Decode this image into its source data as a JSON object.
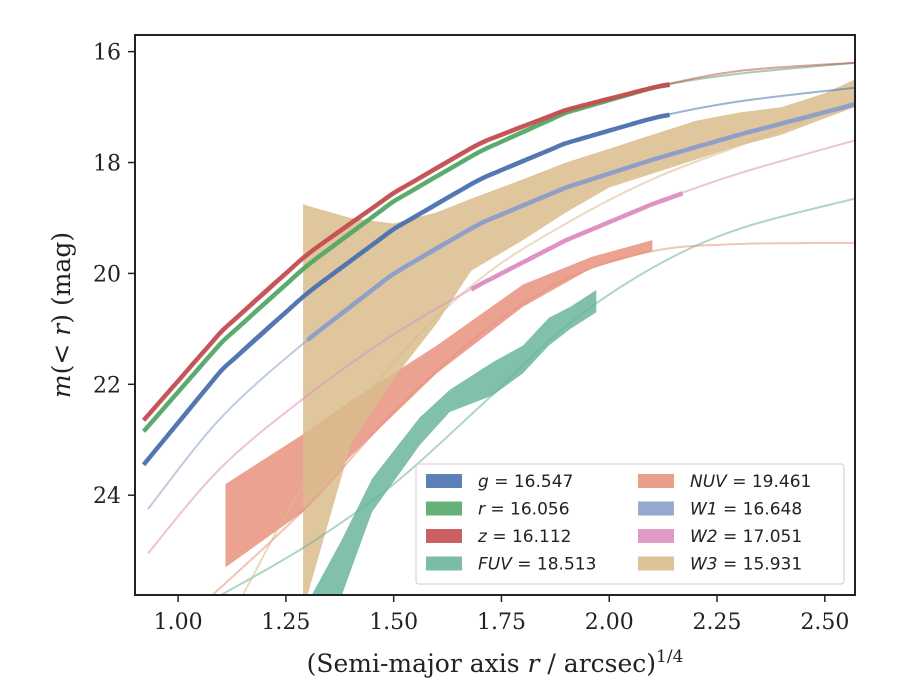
{
  "chart_data": {
    "type": "area",
    "xlabel": "(Semi-major axis r / arcsec)^{1/4}",
    "ylabel": "m(< r) (mag)",
    "xlim": [
      0.9,
      2.57
    ],
    "ylim": [
      25.8,
      15.7
    ],
    "y_inverted": true,
    "xticks": [
      "1.00",
      "1.25",
      "1.50",
      "1.75",
      "2.00",
      "2.25",
      "2.50"
    ],
    "xtick_values": [
      1.0,
      1.25,
      1.5,
      1.75,
      2.0,
      2.25,
      2.5
    ],
    "yticks": [
      "16",
      "18",
      "20",
      "22",
      "24"
    ],
    "ytick_values": [
      16,
      18,
      20,
      22,
      24
    ],
    "grid": false,
    "legend_position": "lower-right",
    "series": [
      {
        "name": "g",
        "legend_label": "g = 16.547",
        "color": "#4c72b0",
        "model": [
          [
            0.92,
            23.45
          ],
          [
            1.1,
            21.75
          ],
          [
            1.3,
            20.35
          ],
          [
            1.5,
            19.2
          ],
          [
            1.7,
            18.3
          ],
          [
            1.9,
            17.65
          ],
          [
            2.1,
            17.2
          ],
          [
            2.3,
            16.9
          ],
          [
            2.57,
            16.65
          ]
        ],
        "band_x": [
          0.92,
          2.14
        ]
      },
      {
        "name": "r",
        "legend_label": "r = 16.056",
        "color": "#55a868",
        "model": [
          [
            0.92,
            22.85
          ],
          [
            1.1,
            21.25
          ],
          [
            1.3,
            19.85
          ],
          [
            1.5,
            18.7
          ],
          [
            1.7,
            17.8
          ],
          [
            1.9,
            17.1
          ],
          [
            2.1,
            16.65
          ],
          [
            2.3,
            16.4
          ],
          [
            2.57,
            16.2
          ]
        ],
        "band_x": [
          0.92,
          2.14
        ]
      },
      {
        "name": "z",
        "legend_label": "z = 16.112",
        "color": "#c44e52",
        "model": [
          [
            0.92,
            22.65
          ],
          [
            1.1,
            21.05
          ],
          [
            1.3,
            19.65
          ],
          [
            1.5,
            18.55
          ],
          [
            1.7,
            17.65
          ],
          [
            1.9,
            17.05
          ],
          [
            2.1,
            16.65
          ],
          [
            2.3,
            16.35
          ],
          [
            2.57,
            16.2
          ]
        ],
        "band_x": [
          0.92,
          2.14
        ]
      },
      {
        "name": "FUV",
        "legend_label": "FUV = 18.513",
        "color": "#6bb59b",
        "model": [
          [
            1.1,
            25.8
          ],
          [
            1.3,
            24.9
          ],
          [
            1.5,
            23.8
          ],
          [
            1.7,
            22.4
          ],
          [
            1.9,
            20.95
          ],
          [
            2.1,
            19.9
          ],
          [
            2.3,
            19.2
          ],
          [
            2.57,
            18.65
          ]
        ],
        "band": [
          [
            1.31,
            25.8,
            25.8
          ],
          [
            1.38,
            25.8,
            24.8
          ],
          [
            1.45,
            24.3,
            23.7
          ],
          [
            1.56,
            23.1,
            22.6
          ],
          [
            1.63,
            22.5,
            22.1
          ],
          [
            1.73,
            22.2,
            21.6
          ],
          [
            1.8,
            21.8,
            21.3
          ],
          [
            1.86,
            21.3,
            20.8
          ],
          [
            1.91,
            21.0,
            20.6
          ],
          [
            1.97,
            20.7,
            20.3
          ]
        ]
      },
      {
        "name": "NUV",
        "legend_label": "NUV = 19.461",
        "color": "#e8927c",
        "model": [
          [
            1.08,
            25.8
          ],
          [
            1.3,
            24.2
          ],
          [
            1.5,
            22.5
          ],
          [
            1.7,
            21.1
          ],
          [
            1.9,
            20.1
          ],
          [
            2.1,
            19.6
          ],
          [
            2.3,
            19.47
          ],
          [
            2.57,
            19.45
          ]
        ],
        "band": [
          [
            1.11,
            25.3,
            23.8
          ],
          [
            1.29,
            24.3,
            22.9
          ],
          [
            1.4,
            23.3,
            22.3
          ],
          [
            1.6,
            21.8,
            21.3
          ],
          [
            1.8,
            20.6,
            20.2
          ],
          [
            1.96,
            19.9,
            19.7
          ],
          [
            2.1,
            19.6,
            19.4
          ]
        ]
      },
      {
        "name": "W1",
        "legend_label": "W1 = 16.648",
        "color": "#8c9ec8",
        "model": [
          [
            0.93,
            24.25
          ],
          [
            1.1,
            22.6
          ],
          [
            1.3,
            21.2
          ],
          [
            1.5,
            20.0
          ],
          [
            1.7,
            19.1
          ],
          [
            1.9,
            18.45
          ],
          [
            2.1,
            17.95
          ],
          [
            2.3,
            17.5
          ],
          [
            2.57,
            16.95
          ]
        ],
        "band_x": [
          1.3,
          2.57
        ]
      },
      {
        "name": "W2",
        "legend_label": "W2 = 17.051",
        "color": "#dd8fc0",
        "model": [
          [
            0.93,
            25.05
          ],
          [
            1.1,
            23.5
          ],
          [
            1.3,
            22.2
          ],
          [
            1.5,
            21.1
          ],
          [
            1.7,
            20.2
          ],
          [
            1.9,
            19.4
          ],
          [
            2.1,
            18.75
          ],
          [
            2.3,
            18.2
          ],
          [
            2.57,
            17.6
          ]
        ],
        "band_x": [
          1.68,
          2.17
        ]
      },
      {
        "name": "W3",
        "legend_label": "W3 = 15.931",
        "color": "#d9bc8c",
        "model": [
          [
            1.15,
            25.8
          ],
          [
            1.3,
            23.7
          ],
          [
            1.5,
            21.6
          ],
          [
            1.7,
            20.1
          ],
          [
            1.9,
            19.1
          ],
          [
            2.1,
            18.3
          ],
          [
            2.3,
            17.7
          ],
          [
            2.57,
            16.9
          ]
        ],
        "band": [
          [
            1.29,
            25.8,
            18.75
          ],
          [
            1.3,
            25.8,
            18.78
          ],
          [
            1.4,
            23.1,
            19.0
          ],
          [
            1.5,
            21.9,
            19.1
          ],
          [
            1.6,
            20.9,
            18.9
          ],
          [
            1.68,
            19.95,
            18.65
          ],
          [
            1.8,
            19.4,
            18.3
          ],
          [
            1.9,
            18.9,
            18.0
          ],
          [
            2.0,
            18.45,
            17.75
          ],
          [
            2.1,
            18.2,
            17.5
          ],
          [
            2.2,
            17.95,
            17.25
          ],
          [
            2.3,
            17.7,
            17.1
          ],
          [
            2.4,
            17.5,
            17.0
          ],
          [
            2.5,
            17.2,
            16.75
          ],
          [
            2.57,
            17.0,
            16.5
          ]
        ]
      }
    ]
  }
}
